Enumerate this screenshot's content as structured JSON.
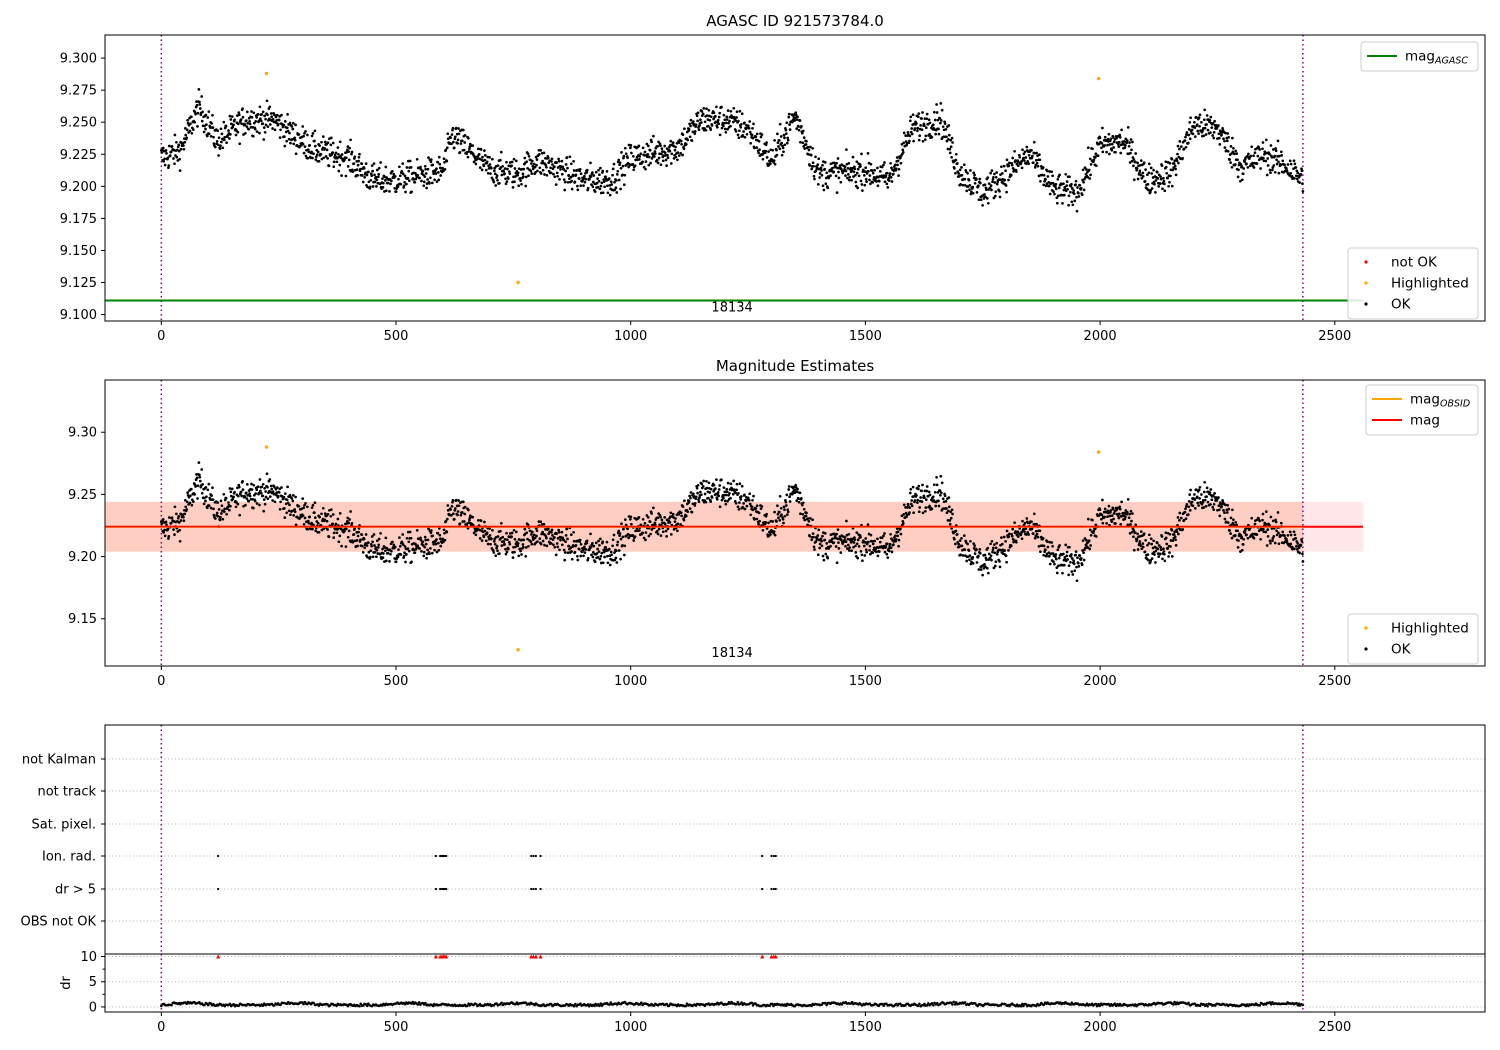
{
  "chart_data": [
    {
      "type": "scatter",
      "title": "AGASC ID 921573784.0",
      "xlim": [
        -120,
        2820
      ],
      "ylim": [
        9.095,
        9.318
      ],
      "xticks": [
        0,
        500,
        1000,
        1500,
        2000,
        2500
      ],
      "yticks": [
        9.1,
        9.125,
        9.15,
        9.175,
        9.2,
        9.225,
        9.25,
        9.275,
        9.3
      ],
      "ytick_labels": [
        "9.100",
        "9.125",
        "9.150",
        "9.175",
        "9.200",
        "9.225",
        "9.250",
        "9.275",
        "9.300"
      ],
      "vlines_dotted": [
        0,
        2432
      ],
      "hline": {
        "value": 9.111,
        "color": "#008000",
        "label": "mag",
        "label_sub": "AGASC",
        "xmax": 2560
      },
      "obsid_label": {
        "x": 1216,
        "text": "18134"
      },
      "series_style": {
        "OK": {
          "color": "#000000"
        },
        "Highlighted": {
          "color": "#ffa500"
        },
        "not OK": {
          "color": "#ff0000"
        }
      },
      "highlighted": {
        "x": [
          224,
          760,
          1997
        ],
        "y": [
          9.288,
          9.125,
          9.284
        ]
      },
      "legends": [
        {
          "position": "top-right",
          "items": [
            {
              "kind": "line",
              "label": "mag",
              "sub": "AGASC",
              "color": "#008000"
            }
          ]
        },
        {
          "position": "lower-right",
          "items": [
            {
              "kind": "dot",
              "label": "not OK",
              "color": "#ff0000"
            },
            {
              "kind": "dot",
              "label": "Highlighted",
              "color": "#ffa500"
            },
            {
              "kind": "dot",
              "label": "OK",
              "color": "#000000"
            }
          ]
        }
      ],
      "ok_series": {
        "x_range": [
          0,
          2432
        ],
        "n_points": 2432,
        "trend_knots": {
          "x": [
            0,
            40,
            80,
            120,
            180,
            240,
            280,
            330,
            400,
            450,
            500,
            600,
            620,
            700,
            760,
            800,
            900,
            960,
            1000,
            1100,
            1150,
            1200,
            1250,
            1300,
            1350,
            1400,
            1500,
            1550,
            1600,
            1660,
            1700,
            1750,
            1800,
            1850,
            1900,
            1950,
            2000,
            2050,
            2100,
            2150,
            2200,
            2250,
            2300,
            2350,
            2400,
            2432
          ],
          "y": [
            9.222,
            9.228,
            9.262,
            9.235,
            9.252,
            9.252,
            9.24,
            9.228,
            9.222,
            9.205,
            9.205,
            9.212,
            9.24,
            9.213,
            9.21,
            9.22,
            9.205,
            9.205,
            9.222,
            9.23,
            9.252,
            9.252,
            9.245,
            9.22,
            9.255,
            9.21,
            9.212,
            9.205,
            9.245,
            9.253,
            9.212,
            9.195,
            9.21,
            9.225,
            9.198,
            9.195,
            9.232,
            9.235,
            9.205,
            9.21,
            9.248,
            9.245,
            9.215,
            9.225,
            9.215,
            9.205
          ]
        },
        "scatter": 0.011
      }
    },
    {
      "type": "scatter",
      "title": "Magnitude Estimates",
      "xlim": [
        -120,
        2820
      ],
      "ylim": [
        9.112,
        9.342
      ],
      "xticks": [
        0,
        500,
        1000,
        1500,
        2000,
        2500
      ],
      "yticks": [
        9.15,
        9.2,
        9.25,
        9.3
      ],
      "ytick_labels": [
        "9.15",
        "9.20",
        "9.25",
        "9.30"
      ],
      "vlines_dotted": [
        0,
        2432
      ],
      "mean_line": {
        "value": 9.224,
        "color": "#ff0000",
        "xmin": -120,
        "xmax": 2560
      },
      "band_wide": {
        "low": 9.204,
        "high": 9.244,
        "color": "#ffb6c1",
        "xmin": -120,
        "xmax": 2560
      },
      "band_obsid": {
        "low": 9.204,
        "high": 9.244,
        "color": "#ffa07a",
        "xmin": -120,
        "xmax": 2432
      },
      "obsid_label": {
        "x": 1216,
        "text": "18134"
      },
      "highlighted": {
        "x": [
          224,
          760,
          1997
        ],
        "y": [
          9.288,
          9.125,
          9.284
        ]
      },
      "legends": [
        {
          "position": "top-right",
          "items": [
            {
              "kind": "line",
              "label": "mag",
              "sub": "OBSID",
              "color": "#ffa500"
            },
            {
              "kind": "line",
              "label": "mag",
              "sub": "",
              "color": "#ff0000"
            }
          ]
        },
        {
          "position": "lower-right",
          "items": [
            {
              "kind": "dot",
              "label": "Highlighted",
              "color": "#ffa500"
            },
            {
              "kind": "dot",
              "label": "OK",
              "color": "#000000"
            }
          ]
        }
      ]
    },
    {
      "type": "scatter",
      "title": "",
      "xlim": [
        -120,
        2820
      ],
      "xticks": [
        0,
        500,
        1000,
        1500,
        2000,
        2500
      ],
      "vlines_dotted": [
        0,
        2432
      ],
      "flag_rows": [
        "not Kalman",
        "not track",
        "Sat. pixel.",
        "Ion. rad.",
        "dr > 5",
        "OBS not OK"
      ],
      "flag_events": {
        "Ion. rad.": [
          121,
          585,
          594,
          598,
          601,
          604,
          607,
          788,
          793,
          798,
          808,
          1280,
          1300,
          1305,
          1309
        ],
        "dr > 5": [
          121,
          585,
          594,
          598,
          601,
          604,
          607,
          788,
          793,
          798,
          808,
          1280,
          1300,
          1305,
          1309
        ]
      },
      "dr_panel": {
        "ylim": [
          -1,
          10.5
        ],
        "yticks": [
          0,
          5,
          10
        ],
        "ylabel": "dr",
        "threshold": 10,
        "clipped_points_x": [
          121,
          585,
          594,
          598,
          601,
          604,
          607,
          788,
          793,
          798,
          808,
          1280,
          1300,
          1305,
          1309
        ],
        "baseline": {
          "x_range": [
            0,
            2432
          ],
          "typical": 0.4,
          "max": 1.1
        }
      }
    }
  ]
}
